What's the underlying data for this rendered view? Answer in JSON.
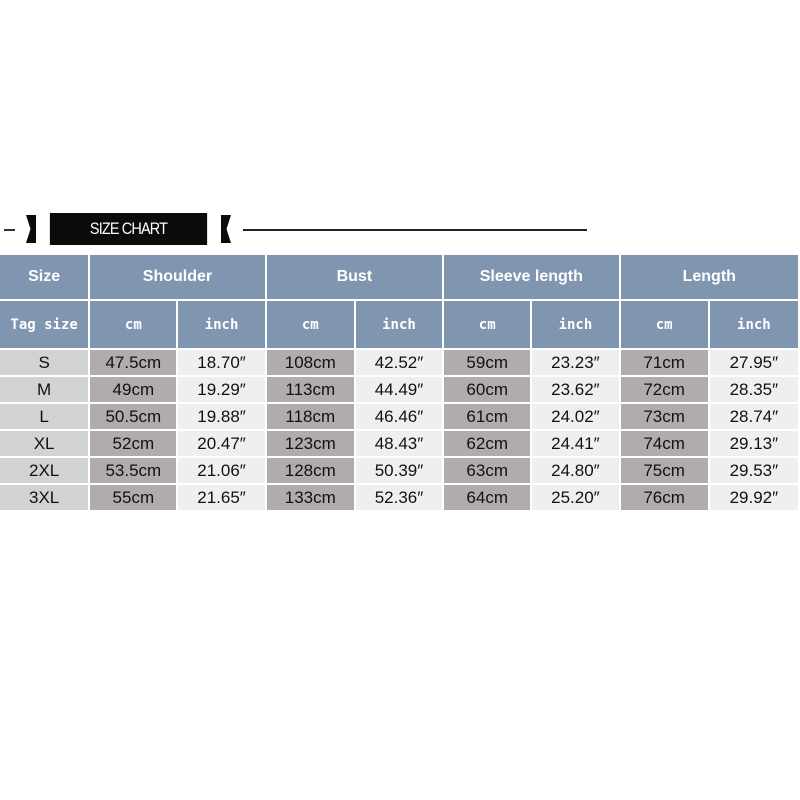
{
  "title": "SIZE CHART",
  "headers": {
    "size": "Size",
    "groups": [
      "Shoulder",
      "Bust",
      "Sleeve length",
      "Length"
    ]
  },
  "subheaders": {
    "tag": "Tag size",
    "cm": "cm",
    "inch": "inch"
  },
  "rows": [
    {
      "size": "S",
      "vals": [
        "47.5cm",
        "18.70″",
        "108cm",
        "42.52″",
        "59cm",
        "23.23″",
        "71cm",
        "27.95″"
      ]
    },
    {
      "size": "M",
      "vals": [
        "49cm",
        "19.29″",
        "113cm",
        "44.49″",
        "60cm",
        "23.62″",
        "72cm",
        "28.35″"
      ]
    },
    {
      "size": "L",
      "vals": [
        "50.5cm",
        "19.88″",
        "118cm",
        "46.46″",
        "61cm",
        "24.02″",
        "73cm",
        "28.74″"
      ]
    },
    {
      "size": "XL",
      "vals": [
        "52cm",
        "20.47″",
        "123cm",
        "48.43″",
        "62cm",
        "24.41″",
        "74cm",
        "29.13″"
      ]
    },
    {
      "size": "2XL",
      "vals": [
        "53.5cm",
        "21.06″",
        "128cm",
        "50.39″",
        "63cm",
        "24.80″",
        "75cm",
        "29.53″"
      ]
    },
    {
      "size": "3XL",
      "vals": [
        "55cm",
        "21.65″",
        "133cm",
        "52.36″",
        "64cm",
        "25.20″",
        "76cm",
        "29.92″"
      ]
    }
  ],
  "colors": {
    "header": "#8096b0",
    "size_col": "#d2d2d2",
    "cm_col": "#b1acab",
    "inch_col": "#efefef"
  }
}
